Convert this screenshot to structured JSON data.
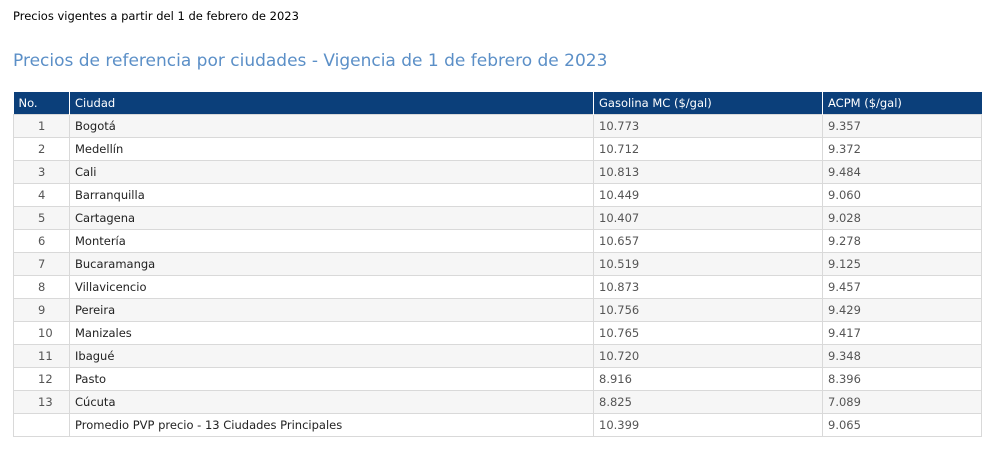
{
  "intro_text": "Precios vigentes a partir del 1 de febrero de 2023",
  "title": "Precios de referencia por ciudades - Vigencia de 1 de febrero de 2023",
  "table": {
    "headers": [
      "No.",
      "Ciudad",
      "Gasolina MC ($/gal)",
      "ACPM ($/gal)"
    ],
    "rows": [
      {
        "no": "1",
        "city": "Bogotá",
        "gasoline": "10.773",
        "acpm": "9.357"
      },
      {
        "no": "2",
        "city": "Medellín",
        "gasoline": "10.712",
        "acpm": "9.372"
      },
      {
        "no": "3",
        "city": "Cali",
        "gasoline": "10.813",
        "acpm": "9.484"
      },
      {
        "no": "4",
        "city": "Barranquilla",
        "gasoline": "10.449",
        "acpm": "9.060"
      },
      {
        "no": "5",
        "city": "Cartagena",
        "gasoline": "10.407",
        "acpm": "9.028"
      },
      {
        "no": "6",
        "city": "Montería",
        "gasoline": "10.657",
        "acpm": "9.278"
      },
      {
        "no": "7",
        "city": "Bucaramanga",
        "gasoline": "10.519",
        "acpm": "9.125"
      },
      {
        "no": "8",
        "city": "Villavicencio",
        "gasoline": "10.873",
        "acpm": "9.457"
      },
      {
        "no": "9",
        "city": "Pereira",
        "gasoline": "10.756",
        "acpm": "9.429"
      },
      {
        "no": "10",
        "city": "Manizales",
        "gasoline": "10.765",
        "acpm": "9.417"
      },
      {
        "no": "11",
        "city": "Ibagué",
        "gasoline": "10.720",
        "acpm": "9.348"
      },
      {
        "no": "12",
        "city": "Pasto",
        "gasoline": "8.916",
        "acpm": "8.396"
      },
      {
        "no": "13",
        "city": "Cúcuta",
        "gasoline": "8.825",
        "acpm": "7.089"
      },
      {
        "no": "",
        "city": "Promedio PVP precio - 13 Ciudades Principales",
        "gasoline": "10.399",
        "acpm": "9.065"
      }
    ]
  },
  "colors": {
    "header_bg": "#0b3f7a",
    "title": "#5b8fc7"
  }
}
